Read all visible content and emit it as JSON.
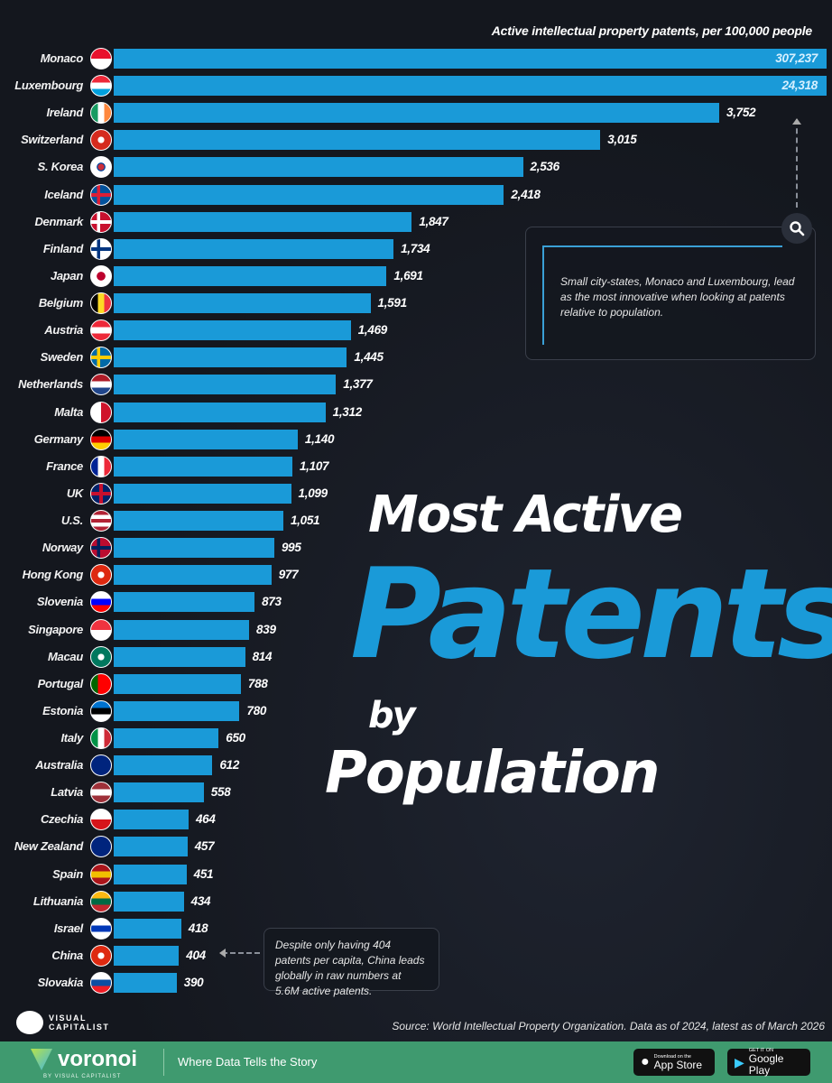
{
  "chart_data": {
    "type": "bar",
    "orientation": "horizontal",
    "axis_title": "Active intellectual property patents, per 100,000 people",
    "bar_color": "#1a9ad8",
    "note": "Monaco and Luxembourg bars truncated (broken scale)",
    "categories": [
      "Monaco",
      "Luxembourg",
      "Ireland",
      "Switzerland",
      "S. Korea",
      "Iceland",
      "Denmark",
      "Finland",
      "Japan",
      "Belgium",
      "Austria",
      "Sweden",
      "Netherlands",
      "Malta",
      "Germany",
      "France",
      "UK",
      "U.S.",
      "Norway",
      "Hong Kong",
      "Slovenia",
      "Singapore",
      "Macau",
      "Portugal",
      "Estonia",
      "Italy",
      "Australia",
      "Latvia",
      "Czechia",
      "New Zealand",
      "Spain",
      "Lithuania",
      "Israel",
      "China",
      "Slovakia"
    ],
    "values": [
      307237,
      24318,
      3752,
      3015,
      2536,
      2418,
      1847,
      1734,
      1691,
      1591,
      1469,
      1445,
      1377,
      1312,
      1140,
      1107,
      1099,
      1051,
      995,
      977,
      873,
      839,
      814,
      788,
      780,
      650,
      612,
      558,
      464,
      457,
      451,
      434,
      418,
      404,
      390
    ],
    "labels": [
      "307,237",
      "24,318",
      "3,752",
      "3,015",
      "2,536",
      "2,418",
      "1,847",
      "1,734",
      "1,691",
      "1,591",
      "1,469",
      "1,445",
      "1,377",
      "1,312",
      "1,140",
      "1,107",
      "1,099",
      "1,051",
      "995",
      "977",
      "873",
      "839",
      "814",
      "788",
      "780",
      "650",
      "612",
      "558",
      "464",
      "457",
      "451",
      "434",
      "418",
      "404",
      "390"
    ],
    "flags": [
      [
        "v",
        "#e8112d",
        "#fff"
      ],
      [
        "v",
        "#ed2939",
        "#fff",
        "#00a1de"
      ],
      [
        "h",
        "#169b62",
        "#fff",
        "#ff883e"
      ],
      [
        "s",
        "#d52b1e"
      ],
      [
        "c",
        "#fff"
      ],
      [
        "n",
        "#02529c",
        "#dc1e35"
      ],
      [
        "n",
        "#c8102e",
        "#fff"
      ],
      [
        "n",
        "#fff",
        "#003580"
      ],
      [
        "j",
        "#fff"
      ],
      [
        "h",
        "#000",
        "#fdda24",
        "#ef3340"
      ],
      [
        "v",
        "#ed2939",
        "#fff",
        "#ed2939"
      ],
      [
        "n",
        "#006aa7",
        "#fecc00"
      ],
      [
        "v",
        "#ae1c28",
        "#fff",
        "#21468b"
      ],
      [
        "h",
        "#fff",
        "#cf142b"
      ],
      [
        "v",
        "#000",
        "#dd0000",
        "#ffce00"
      ],
      [
        "h",
        "#002395",
        "#fff",
        "#ed2939"
      ],
      [
        "u",
        "#012169"
      ],
      [
        "v",
        "#b22234",
        "#fff",
        "#b22234",
        "#fff",
        "#b22234"
      ],
      [
        "n",
        "#ba0c2f",
        "#00205b"
      ],
      [
        "s",
        "#de2910"
      ],
      [
        "v",
        "#fff",
        "#0000ff",
        "#ff0000"
      ],
      [
        "v",
        "#ef3340",
        "#fff"
      ],
      [
        "s",
        "#00785e"
      ],
      [
        "h",
        "#006600",
        "#ff0000",
        "#ff0000"
      ],
      [
        "v",
        "#0072ce",
        "#000",
        "#fff"
      ],
      [
        "h",
        "#009246",
        "#fff",
        "#ce2b37"
      ],
      [
        "v",
        "#00247d",
        "#00247d"
      ],
      [
        "v",
        "#9e3039",
        "#fff",
        "#9e3039"
      ],
      [
        "v",
        "#fff",
        "#d7141a"
      ],
      [
        "v",
        "#00247d",
        "#00247d"
      ],
      [
        "v",
        "#aa151b",
        "#f1bf00",
        "#aa151b"
      ],
      [
        "v",
        "#fdb913",
        "#006a44",
        "#c1272d"
      ],
      [
        "v",
        "#fff",
        "#0038b8",
        "#fff"
      ],
      [
        "s",
        "#de2910"
      ],
      [
        "v",
        "#fff",
        "#0b4ea2",
        "#ee1c25"
      ]
    ]
  },
  "annotations": {
    "top_note": "Small city-states, Monaco and Luxembourg, lead as the most innovative when looking at patents relative to population.",
    "china_note": "Despite only having 404 patents per capita, China leads globally in raw numbers at 5.6M active patents."
  },
  "title": {
    "line1": "Most Active",
    "line2": "Patents",
    "line3": "by",
    "line4": "Population"
  },
  "source": "Source: World Intellectual Property Organization. Data as of 2024, latest as of March 2026",
  "brand": {
    "logo_text": "VISUAL CAPITALIST",
    "footer_logo": "voronoi",
    "footer_sub": "BY VISUAL CAPITALIST",
    "tagline": "Where Data Tells the Story",
    "app_store_small": "Download on the",
    "app_store": "App Store",
    "google_small": "GET IT ON",
    "google": "Google Play",
    "footer_color": "#3f9a6f"
  }
}
